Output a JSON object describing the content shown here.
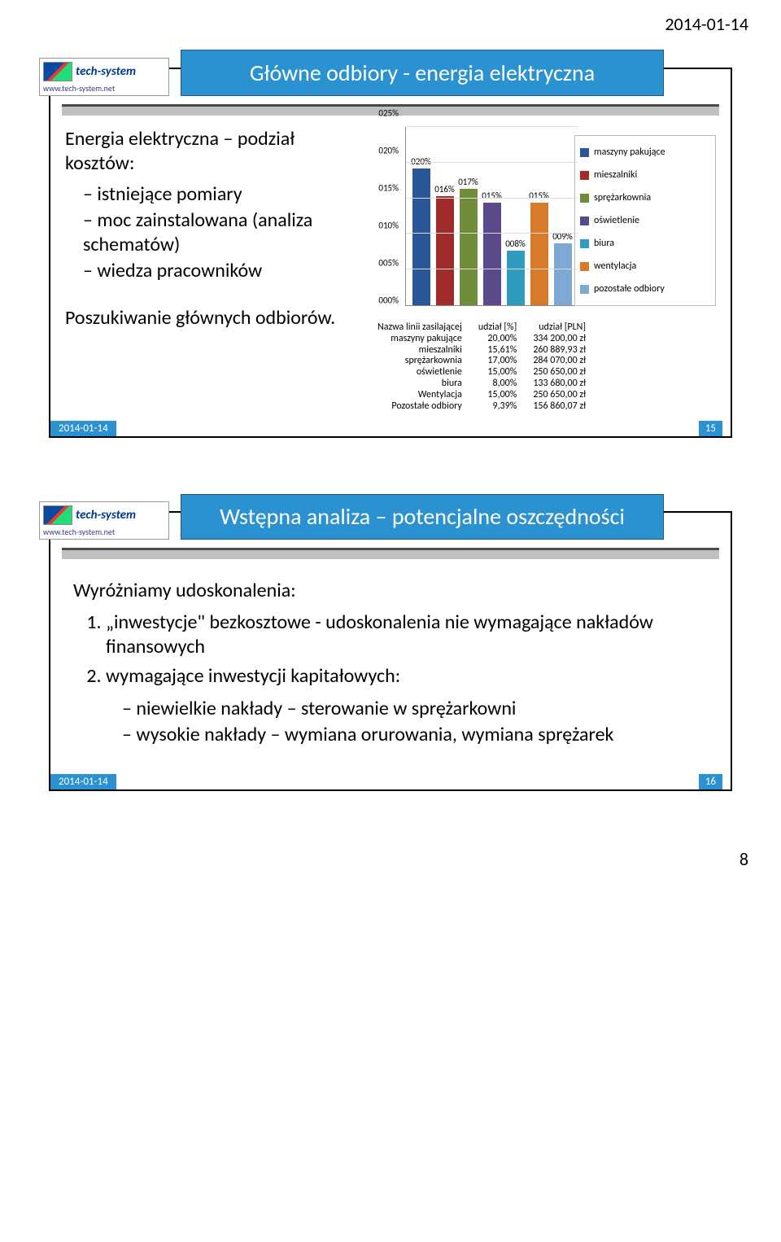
{
  "page_header_date": "2014-01-14",
  "page_footer_number": "8",
  "slide1": {
    "title": "Główne odbiory - energia elektryczna",
    "logo_name": "tech-system",
    "logo_url": "www.tech-system.net",
    "left_heading": "Energia elektryczna – podział kosztów:",
    "left_bullets": [
      "istniejące pomiary",
      "moc zainstalowana (analiza schematów)",
      "wiedza pracowników"
    ],
    "left_sub": "Poszukiwanie głównych odbiorów.",
    "footer_date": "2014-01-14",
    "footer_num": "15",
    "chart": {
      "type": "bar",
      "ymax": 25,
      "ytick_step": 5,
      "ytick_labels": [
        "000%",
        "005%",
        "010%",
        "015%",
        "020%",
        "025%"
      ],
      "bars": [
        {
          "label": "020%",
          "value": 20,
          "color": "#2a579a"
        },
        {
          "label": "016%",
          "value": 16,
          "color": "#a02b2b"
        },
        {
          "label": "017%",
          "value": 17,
          "color": "#6e8c3a"
        },
        {
          "label": "015%",
          "value": 15,
          "color": "#5a4a8c"
        },
        {
          "label": "008%",
          "value": 8,
          "color": "#2e9bbf"
        },
        {
          "label": "015%",
          "value": 15,
          "color": "#d97a2b"
        },
        {
          "label": "009%",
          "value": 9,
          "color": "#7fa8d4"
        }
      ],
      "legend": [
        {
          "label": "maszyny pakujące",
          "color": "#2a579a"
        },
        {
          "label": "mieszalniki",
          "color": "#a02b2b"
        },
        {
          "label": "sprężarkownia",
          "color": "#6e8c3a"
        },
        {
          "label": "oświetlenie",
          "color": "#5a4a8c"
        },
        {
          "label": "biura",
          "color": "#2e9bbf"
        },
        {
          "label": "wentylacja",
          "color": "#d97a2b"
        },
        {
          "label": "pozostałe odbiory",
          "color": "#7fa8d4"
        }
      ]
    },
    "table": {
      "headers": [
        "Nazwa linii zasilającej",
        "udział [%]",
        "udział [PLN]"
      ],
      "rows": [
        [
          "maszyny pakujące",
          "20,00%",
          "334 200,00 zł"
        ],
        [
          "mieszalniki",
          "15,61%",
          "260 889,93 zł"
        ],
        [
          "sprężarkownia",
          "17,00%",
          "284 070,00 zł"
        ],
        [
          "oświetlenie",
          "15,00%",
          "250 650,00 zł"
        ],
        [
          "biura",
          "8,00%",
          "133 680,00 zł"
        ],
        [
          "Wentylacja",
          "15,00%",
          "250 650,00 zł"
        ],
        [
          "Pozostałe odbiory",
          "9,39%",
          "156 860,07 zł"
        ]
      ]
    }
  },
  "slide2": {
    "title": "Wstępna analiza – potencjalne oszczędności",
    "logo_name": "tech-system",
    "logo_url": "www.tech-system.net",
    "heading": "Wyróżniamy udoskonalenia:",
    "items": [
      "„inwestycje\" bezkosztowe - udoskonalenia nie wymagające nakładów finansowych",
      "wymagające inwestycji kapitałowych:"
    ],
    "sub_items": [
      "niewielkie nakłady – sterowanie w sprężarkowni",
      "wysokie nakłady – wymiana orurowania, wymiana sprężarek"
    ],
    "footer_date": "2014-01-14",
    "footer_num": "16"
  }
}
